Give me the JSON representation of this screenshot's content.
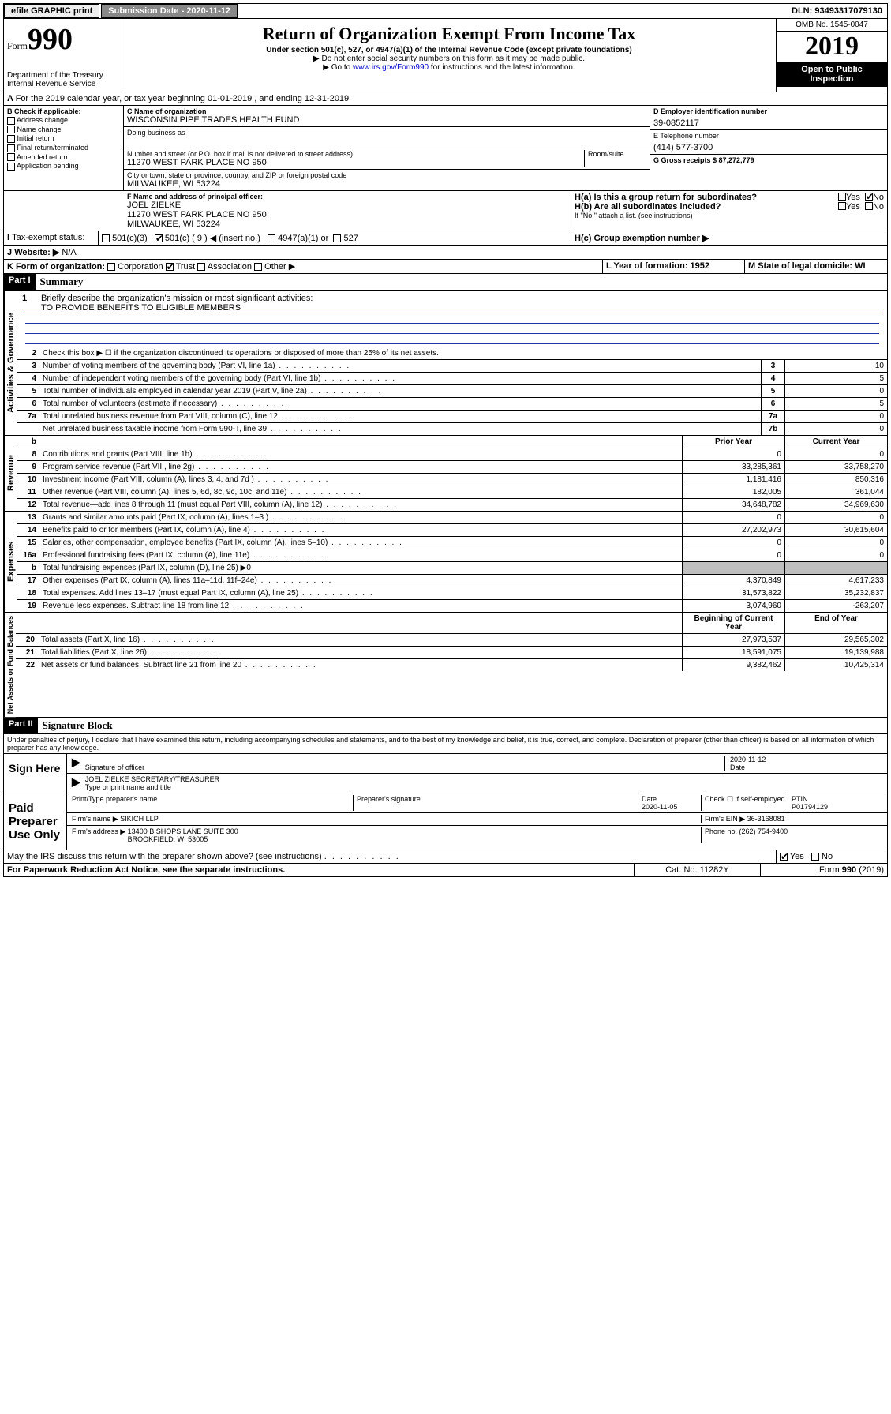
{
  "topbar": {
    "efile": "efile GRAPHIC print",
    "subdate_label": "Submission Date - 2020-11-12",
    "dln": "DLN: 93493317079130"
  },
  "header": {
    "form_word": "Form",
    "form_num": "990",
    "dept": "Department of the Treasury\nInternal Revenue Service",
    "title": "Return of Organization Exempt From Income Tax",
    "sub1": "Under section 501(c), 527, or 4947(a)(1) of the Internal Revenue Code (except private foundations)",
    "sub2": "▶ Do not enter social security numbers on this form as it may be made public.",
    "sub3a": "▶ Go to ",
    "sub3link": "www.irs.gov/Form990",
    "sub3b": " for instructions and the latest information.",
    "omb": "OMB No. 1545-0047",
    "year": "2019",
    "open": "Open to Public Inspection"
  },
  "line_a": "For the 2019 calendar year, or tax year beginning 01-01-2019   , and ending 12-31-2019",
  "section_b": {
    "label": "B Check if applicable:",
    "items": [
      "Address change",
      "Name change",
      "Initial return",
      "Final return/terminated",
      "Amended return",
      "Application pending"
    ]
  },
  "section_c": {
    "label_name": "C Name of organization",
    "name": "WISCONSIN PIPE TRADES HEALTH FUND",
    "dba": "Doing business as",
    "addr_label": "Number and street (or P.O. box if mail is not delivered to street address)",
    "room": "Room/suite",
    "addr": "11270 WEST PARK PLACE NO 950",
    "city_label": "City or town, state or province, country, and ZIP or foreign postal code",
    "city": "MILWAUKEE, WI  53224"
  },
  "section_d": {
    "label": "D Employer identification number",
    "value": "39-0852117"
  },
  "section_e": {
    "label": "E Telephone number",
    "value": "(414) 577-3700"
  },
  "section_g": {
    "label": "G Gross receipts $ 87,272,779"
  },
  "section_f": {
    "label": "F  Name and address of principal officer:",
    "name": "JOEL ZIELKE",
    "addr": "11270 WEST PARK PLACE NO 950\nMILWAUKEE, WI  53224"
  },
  "section_h": {
    "a": "H(a)  Is this a group return for subordinates?",
    "b": "H(b)  Are all subordinates included?",
    "b_note": "If \"No,\" attach a list. (see instructions)",
    "c": "H(c)  Group exemption number ▶"
  },
  "tax_exempt": {
    "label": "Tax-exempt status:",
    "o1": "501(c)(3)",
    "o2": "501(c) ( 9 ) ◀ (insert no.)",
    "o3": "4947(a)(1) or",
    "o4": "527"
  },
  "website": {
    "label_j": "J",
    "label": "Website: ▶",
    "value": "N/A"
  },
  "line_k": "K Form of organization:",
  "k_opts": [
    "Corporation",
    "Trust",
    "Association",
    "Other ▶"
  ],
  "line_l": {
    "label": "L Year of formation: 1952"
  },
  "line_m": {
    "label": "M State of legal domicile: WI"
  },
  "part1": {
    "tag": "Part I",
    "title": "Summary"
  },
  "mission": {
    "num": "1",
    "label": "Briefly describe the organization's mission or most significant activities:",
    "text": "TO PROVIDE BENEFITS TO ELIGIBLE MEMBERS"
  },
  "line2": {
    "num": "2",
    "text": "Check this box ▶ ☐  if the organization discontinued its operations or disposed of more than 25% of its net assets."
  },
  "governance_rows": [
    {
      "n": "3",
      "d": "Number of voting members of the governing body (Part VI, line 1a)",
      "box": "3",
      "v": "10"
    },
    {
      "n": "4",
      "d": "Number of independent voting members of the governing body (Part VI, line 1b)",
      "box": "4",
      "v": "5"
    },
    {
      "n": "5",
      "d": "Total number of individuals employed in calendar year 2019 (Part V, line 2a)",
      "box": "5",
      "v": "0"
    },
    {
      "n": "6",
      "d": "Total number of volunteers (estimate if necessary)",
      "box": "6",
      "v": "5"
    },
    {
      "n": "7a",
      "d": "Total unrelated business revenue from Part VIII, column (C), line 12",
      "box": "7a",
      "v": "0"
    },
    {
      "n": "",
      "d": "Net unrelated business taxable income from Form 990-T, line 39",
      "box": "7b",
      "v": "0"
    }
  ],
  "col_headers": {
    "b": "b",
    "prior": "Prior Year",
    "current": "Current Year"
  },
  "revenue_rows": [
    {
      "n": "8",
      "d": "Contributions and grants (Part VIII, line 1h)",
      "p": "0",
      "c": "0"
    },
    {
      "n": "9",
      "d": "Program service revenue (Part VIII, line 2g)",
      "p": "33,285,361",
      "c": "33,758,270"
    },
    {
      "n": "10",
      "d": "Investment income (Part VIII, column (A), lines 3, 4, and 7d )",
      "p": "1,181,416",
      "c": "850,316"
    },
    {
      "n": "11",
      "d": "Other revenue (Part VIII, column (A), lines 5, 6d, 8c, 9c, 10c, and 11e)",
      "p": "182,005",
      "c": "361,044"
    },
    {
      "n": "12",
      "d": "Total revenue—add lines 8 through 11 (must equal Part VIII, column (A), line 12)",
      "p": "34,648,782",
      "c": "34,969,630"
    }
  ],
  "expense_rows": [
    {
      "n": "13",
      "d": "Grants and similar amounts paid (Part IX, column (A), lines 1–3 )",
      "p": "0",
      "c": "0"
    },
    {
      "n": "14",
      "d": "Benefits paid to or for members (Part IX, column (A), line 4)",
      "p": "27,202,973",
      "c": "30,615,604"
    },
    {
      "n": "15",
      "d": "Salaries, other compensation, employee benefits (Part IX, column (A), lines 5–10)",
      "p": "0",
      "c": "0"
    },
    {
      "n": "16a",
      "d": "Professional fundraising fees (Part IX, column (A), line 11e)",
      "p": "0",
      "c": "0"
    },
    {
      "n": "b",
      "d": "Total fundraising expenses (Part IX, column (D), line 25) ▶0",
      "p": "",
      "c": "",
      "shade": true
    },
    {
      "n": "17",
      "d": "Other expenses (Part IX, column (A), lines 11a–11d, 11f–24e)",
      "p": "4,370,849",
      "c": "4,617,233"
    },
    {
      "n": "18",
      "d": "Total expenses. Add lines 13–17 (must equal Part IX, column (A), line 25)",
      "p": "31,573,822",
      "c": "35,232,837"
    },
    {
      "n": "19",
      "d": "Revenue less expenses. Subtract line 18 from line 12",
      "p": "3,074,960",
      "c": "-263,207"
    }
  ],
  "net_headers": {
    "beg": "Beginning of Current Year",
    "end": "End of Year"
  },
  "net_rows": [
    {
      "n": "20",
      "d": "Total assets (Part X, line 16)",
      "p": "27,973,537",
      "c": "29,565,302"
    },
    {
      "n": "21",
      "d": "Total liabilities (Part X, line 26)",
      "p": "18,591,075",
      "c": "19,139,988"
    },
    {
      "n": "22",
      "d": "Net assets or fund balances. Subtract line 21 from line 20",
      "p": "9,382,462",
      "c": "10,425,314"
    }
  ],
  "vert_labels": {
    "gov": "Activities & Governance",
    "rev": "Revenue",
    "exp": "Expenses",
    "net": "Net Assets or Fund Balances"
  },
  "part2": {
    "tag": "Part II",
    "title": "Signature Block"
  },
  "perjury": "Under penalties of perjury, I declare that I have examined this return, including accompanying schedules and statements, and to the best of my knowledge and belief, it is true, correct, and complete. Declaration of preparer (other than officer) is based on all information of which preparer has any knowledge.",
  "sign": {
    "here": "Sign Here",
    "sig_label": "Signature of officer",
    "date": "2020-11-12",
    "date_label": "Date",
    "name": "JOEL ZIELKE  SECRETARY/TREASURER",
    "name_label": "Type or print name and title"
  },
  "paid": {
    "label": "Paid Preparer Use Only",
    "h1": "Print/Type preparer's name",
    "h2": "Preparer's signature",
    "h3": "Date",
    "h3v": "2020-11-05",
    "h4": "Check ☐ if self-employed",
    "h5": "PTIN",
    "h5v": "P01794129",
    "firm_label": "Firm's name    ▶",
    "firm": "SIKICH LLP",
    "ein_label": "Firm's EIN ▶ 36-3168081",
    "addr_label": "Firm's address ▶",
    "addr": "13400 BISHOPS LANE SUITE 300\nBROOKFIELD, WI  53005",
    "phone": "Phone no. (262) 754-9400"
  },
  "footer": {
    "discuss": "May the IRS discuss this return with the preparer shown above? (see instructions)",
    "paperwork": "For Paperwork Reduction Act Notice, see the separate instructions.",
    "cat": "Cat. No. 11282Y",
    "form": "Form 990 (2019)"
  },
  "yes": "Yes",
  "no": "No"
}
